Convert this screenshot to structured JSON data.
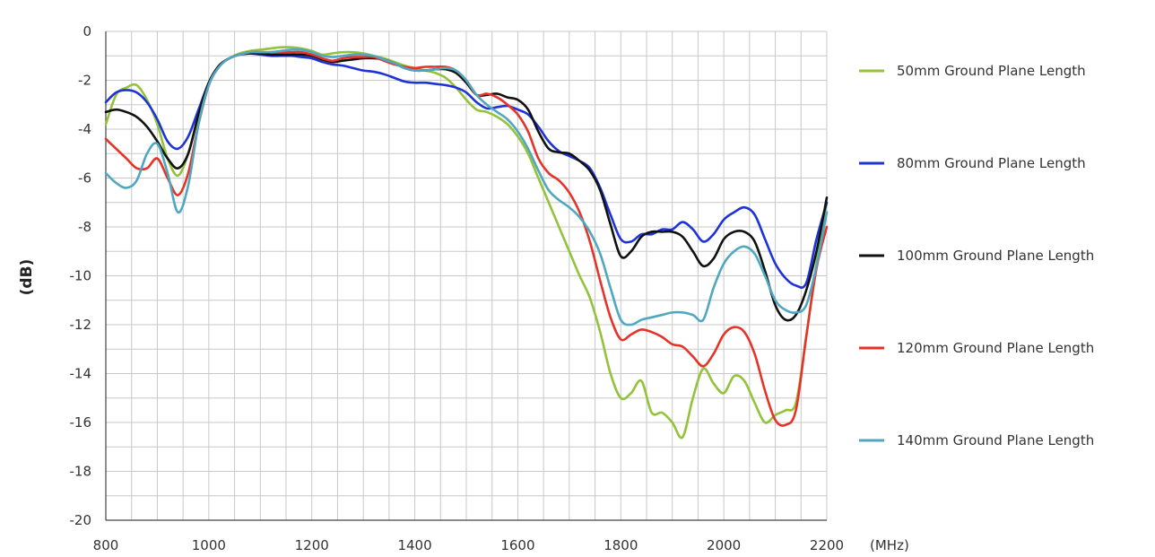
{
  "chart_data": {
    "type": "line",
    "title": "",
    "ylabel": "(dB)",
    "xlabel": "",
    "x_unit": "(MHz)",
    "xlim": [
      800,
      2200
    ],
    "ylim": [
      -20,
      0
    ],
    "xticks": [
      800,
      1000,
      1200,
      1400,
      1600,
      1800,
      2000,
      2200
    ],
    "yticks": [
      0,
      -2,
      -4,
      -6,
      -8,
      -10,
      -12,
      -14,
      -16,
      -18,
      -20
    ],
    "grid": true,
    "legend_position": "right",
    "x": [
      800,
      820,
      840,
      860,
      880,
      900,
      920,
      940,
      960,
      980,
      1000,
      1020,
      1040,
      1060,
      1080,
      1100,
      1120,
      1140,
      1160,
      1180,
      1200,
      1220,
      1240,
      1260,
      1280,
      1300,
      1320,
      1340,
      1360,
      1380,
      1400,
      1420,
      1440,
      1460,
      1480,
      1500,
      1520,
      1540,
      1560,
      1580,
      1600,
      1620,
      1640,
      1660,
      1680,
      1700,
      1720,
      1740,
      1760,
      1780,
      1800,
      1820,
      1840,
      1860,
      1880,
      1900,
      1920,
      1940,
      1960,
      1980,
      2000,
      2020,
      2040,
      2060,
      2080,
      2100,
      2120,
      2140,
      2160,
      2180,
      2200
    ],
    "series": [
      {
        "name": "50mm Ground Plane Length",
        "color": "#93c23b",
        "values": [
          -3.8,
          -2.6,
          -2.3,
          -2.2,
          -2.8,
          -3.8,
          -5.2,
          -5.9,
          -5.0,
          -3.4,
          -2.1,
          -1.4,
          -1.1,
          -0.9,
          -0.8,
          -0.75,
          -0.7,
          -0.65,
          -0.65,
          -0.7,
          -0.8,
          -0.95,
          -0.9,
          -0.85,
          -0.85,
          -0.9,
          -1.0,
          -1.1,
          -1.25,
          -1.4,
          -1.5,
          -1.6,
          -1.7,
          -1.9,
          -2.3,
          -2.8,
          -3.2,
          -3.3,
          -3.5,
          -3.8,
          -4.3,
          -5.0,
          -6.0,
          -7.0,
          -8.0,
          -9.0,
          -10.0,
          -10.9,
          -12.3,
          -14.0,
          -15.0,
          -14.8,
          -14.3,
          -15.6,
          -15.6,
          -16.0,
          -16.6,
          -15.0,
          -13.8,
          -14.4,
          -14.8,
          -14.1,
          -14.3,
          -15.2,
          -16.0,
          -15.7,
          -15.5,
          -15.2,
          -12.5,
          -9.5,
          -7.0
        ]
      },
      {
        "name": "80mm Ground Plane Length",
        "color": "#1e33d6",
        "values": [
          -2.9,
          -2.5,
          -2.4,
          -2.5,
          -2.9,
          -3.6,
          -4.5,
          -4.8,
          -4.3,
          -3.2,
          -2.1,
          -1.4,
          -1.1,
          -0.95,
          -0.9,
          -0.95,
          -1.0,
          -1.0,
          -1.0,
          -1.05,
          -1.1,
          -1.25,
          -1.35,
          -1.4,
          -1.5,
          -1.6,
          -1.65,
          -1.75,
          -1.9,
          -2.05,
          -2.1,
          -2.1,
          -2.15,
          -2.2,
          -2.3,
          -2.5,
          -2.9,
          -3.15,
          -3.1,
          -3.05,
          -3.2,
          -3.4,
          -3.9,
          -4.5,
          -4.9,
          -5.1,
          -5.3,
          -5.6,
          -6.4,
          -7.5,
          -8.5,
          -8.6,
          -8.3,
          -8.3,
          -8.1,
          -8.1,
          -7.8,
          -8.1,
          -8.6,
          -8.3,
          -7.7,
          -7.4,
          -7.2,
          -7.5,
          -8.5,
          -9.5,
          -10.1,
          -10.4,
          -10.3,
          -8.5,
          -7.0
        ]
      },
      {
        "name": "100mm Ground Plane Length",
        "color": "#111111",
        "values": [
          -3.3,
          -3.2,
          -3.3,
          -3.5,
          -3.9,
          -4.5,
          -5.2,
          -5.6,
          -5.0,
          -3.4,
          -2.1,
          -1.4,
          -1.1,
          -0.95,
          -0.9,
          -0.9,
          -0.95,
          -0.95,
          -0.95,
          -0.95,
          -1.0,
          -1.15,
          -1.25,
          -1.2,
          -1.15,
          -1.1,
          -1.1,
          -1.15,
          -1.3,
          -1.5,
          -1.6,
          -1.6,
          -1.55,
          -1.55,
          -1.7,
          -2.1,
          -2.6,
          -2.6,
          -2.55,
          -2.7,
          -2.8,
          -3.2,
          -4.1,
          -4.8,
          -4.95,
          -5.0,
          -5.3,
          -5.7,
          -6.5,
          -7.9,
          -9.2,
          -9.0,
          -8.4,
          -8.2,
          -8.2,
          -8.2,
          -8.4,
          -9.0,
          -9.6,
          -9.3,
          -8.5,
          -8.2,
          -8.2,
          -8.6,
          -9.8,
          -11.2,
          -11.8,
          -11.6,
          -10.6,
          -9.0,
          -6.8
        ]
      },
      {
        "name": "120mm Ground Plane Length",
        "color": "#e63329",
        "values": [
          -4.4,
          -4.8,
          -5.2,
          -5.6,
          -5.6,
          -5.2,
          -6.0,
          -6.7,
          -5.8,
          -3.8,
          -2.2,
          -1.45,
          -1.1,
          -0.95,
          -0.85,
          -0.85,
          -0.85,
          -0.85,
          -0.85,
          -0.85,
          -0.95,
          -1.1,
          -1.2,
          -1.1,
          -1.05,
          -1.05,
          -1.05,
          -1.2,
          -1.35,
          -1.45,
          -1.5,
          -1.45,
          -1.45,
          -1.45,
          -1.6,
          -2.0,
          -2.6,
          -2.55,
          -2.7,
          -3.0,
          -3.4,
          -4.1,
          -5.2,
          -5.8,
          -6.1,
          -6.6,
          -7.4,
          -8.6,
          -10.2,
          -11.7,
          -12.6,
          -12.4,
          -12.2,
          -12.3,
          -12.5,
          -12.8,
          -12.9,
          -13.3,
          -13.7,
          -13.2,
          -12.4,
          -12.1,
          -12.3,
          -13.2,
          -14.7,
          -15.9,
          -16.1,
          -15.5,
          -12.5,
          -9.7,
          -8.0
        ]
      },
      {
        "name": "140mm Ground Plane Length",
        "color": "#4fa7c0",
        "values": [
          -5.8,
          -6.2,
          -6.4,
          -6.1,
          -5.0,
          -4.6,
          -5.8,
          -7.4,
          -6.3,
          -3.8,
          -2.2,
          -1.45,
          -1.1,
          -0.95,
          -0.85,
          -0.85,
          -0.85,
          -0.8,
          -0.75,
          -0.75,
          -0.85,
          -1.0,
          -1.05,
          -1.0,
          -0.95,
          -0.95,
          -1.0,
          -1.15,
          -1.3,
          -1.5,
          -1.6,
          -1.6,
          -1.55,
          -1.5,
          -1.6,
          -2.0,
          -2.6,
          -3.0,
          -3.3,
          -3.6,
          -4.1,
          -4.8,
          -5.7,
          -6.5,
          -6.9,
          -7.2,
          -7.6,
          -8.2,
          -9.1,
          -10.5,
          -11.8,
          -12.0,
          -11.8,
          -11.7,
          -11.6,
          -11.5,
          -11.5,
          -11.6,
          -11.8,
          -10.5,
          -9.5,
          -9.0,
          -8.8,
          -9.1,
          -10.0,
          -11.0,
          -11.4,
          -11.5,
          -11.2,
          -9.6,
          -7.4
        ]
      }
    ]
  }
}
